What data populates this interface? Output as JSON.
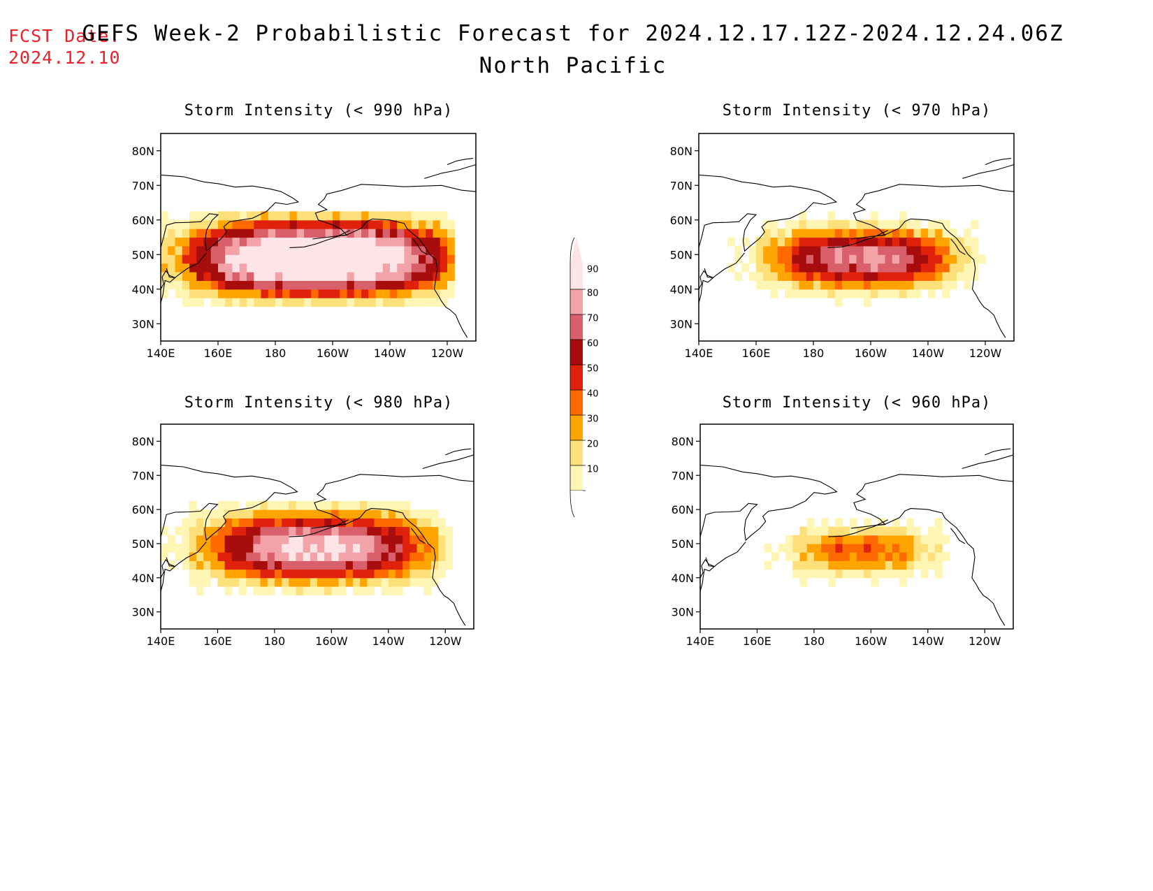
{
  "header": {
    "fcst_label": "FCST Date:",
    "fcst_date": "2024.12.10",
    "title": "GEFS Week-2 Probabilistic Forecast for 2024.12.17.12Z-2024.12.24.06Z",
    "region": "North Pacific"
  },
  "axes": {
    "lat_labels": [
      "80N",
      "70N",
      "60N",
      "50N",
      "40N",
      "30N"
    ],
    "lon_labels": [
      "140E",
      "160E",
      "180",
      "160W",
      "140W",
      "120W"
    ]
  },
  "panels": [
    {
      "title": "Storm Intensity (< 990 hPa)",
      "threshold_hPa": 990
    },
    {
      "title": "Storm Intensity (< 970 hPa)",
      "threshold_hPa": 970
    },
    {
      "title": "Storm Intensity (< 980 hPa)",
      "threshold_hPa": 980
    },
    {
      "title": "Storm Intensity (< 960 hPa)",
      "threshold_hPa": 960
    }
  ],
  "colorbar": {
    "labels": [
      "90",
      "80",
      "70",
      "60",
      "50",
      "40",
      "30",
      "20",
      "10"
    ],
    "colors": [
      "#fde4e6",
      "#f2a3a8",
      "#d9606a",
      "#a80d0d",
      "#e0210c",
      "#ff6a00",
      "#ffa400",
      "#fde07a",
      "#fff6b5"
    ]
  },
  "map_data": {
    "type": "probability_contour_map",
    "units": "percent",
    "levels": [
      10,
      20,
      30,
      40,
      50,
      60,
      70,
      80,
      90
    ],
    "lon_range": [
      "140E",
      "110W"
    ],
    "lat_range": [
      "25N",
      "85N"
    ]
  }
}
